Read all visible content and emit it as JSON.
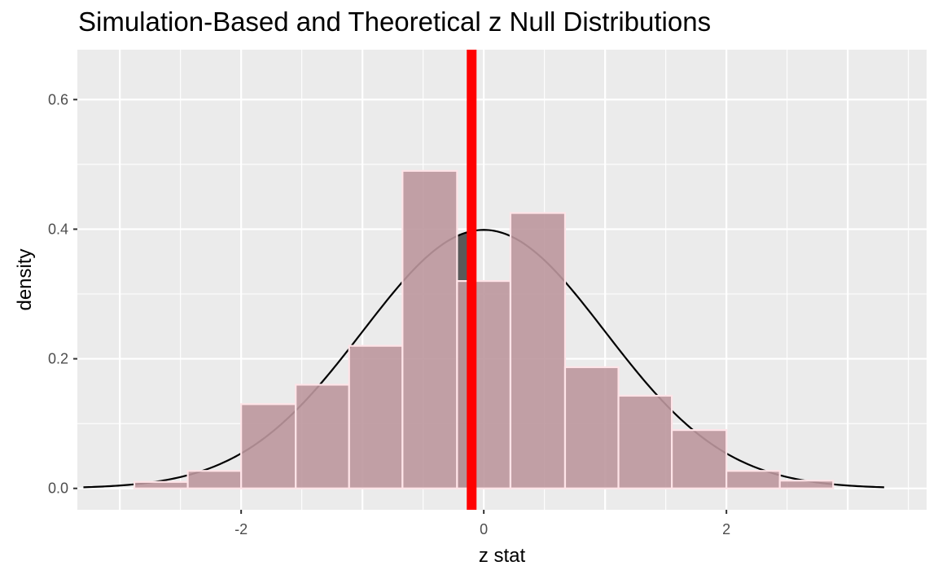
{
  "chart_data": {
    "type": "bar",
    "title": "Simulation-Based and Theoretical z Null Distributions",
    "xlabel": "z stat",
    "ylabel": "density",
    "xlim": [
      -3.35,
      3.65
    ],
    "ylim": [
      -0.033,
      0.677
    ],
    "x_ticks": [
      -3,
      -2,
      -1,
      0,
      1,
      2,
      3
    ],
    "x_tick_labels": [
      "-2",
      "0",
      "2"
    ],
    "x_tick_label_values": [
      -2,
      0,
      2
    ],
    "y_ticks": [
      0,
      0.2,
      0.4,
      0.6
    ],
    "y_tick_labels": [
      "0.0",
      "0.2",
      "0.4",
      "0.6"
    ],
    "y_minor_ticks": [
      0.1,
      0.3,
      0.5
    ],
    "grid": true,
    "series": [
      {
        "kind": "histogram",
        "fill": "#bc979d",
        "stroke": "#ffe4e8",
        "bins": [
          {
            "x0": -2.88,
            "x1": -2.44,
            "density": 0.01
          },
          {
            "x0": -2.44,
            "x1": -2.0,
            "density": 0.027
          },
          {
            "x0": -2.0,
            "x1": -1.55,
            "density": 0.13
          },
          {
            "x0": -1.55,
            "x1": -1.11,
            "density": 0.16
          },
          {
            "x0": -1.11,
            "x1": -0.67,
            "density": 0.22
          },
          {
            "x0": -0.67,
            "x1": -0.22,
            "density": 0.49
          },
          {
            "x0": -0.22,
            "x1": 0.22,
            "density": 0.32
          },
          {
            "x0": 0.22,
            "x1": 0.67,
            "density": 0.425
          },
          {
            "x0": 0.67,
            "x1": 1.11,
            "density": 0.187
          },
          {
            "x0": 1.11,
            "x1": 1.55,
            "density": 0.143
          },
          {
            "x0": 1.55,
            "x1": 2.0,
            "density": 0.09
          },
          {
            "x0": 2.0,
            "x1": 2.44,
            "density": 0.027
          },
          {
            "x0": 2.44,
            "x1": 2.88,
            "density": 0.012
          }
        ]
      },
      {
        "kind": "normal-density-curve",
        "mean": 0,
        "sd": 1,
        "x_range": [
          -3.3,
          3.3
        ],
        "color": "#000000"
      },
      {
        "kind": "shaded-area",
        "x_range": [
          -0.22,
          -0.13
        ],
        "color": "#595959"
      },
      {
        "kind": "vertical-line",
        "x": -0.1,
        "color": "#ff0000"
      }
    ],
    "colors": {
      "panel_background": "#ebebeb",
      "grid": "#ffffff",
      "tick_text": "#4d4d4d"
    }
  }
}
